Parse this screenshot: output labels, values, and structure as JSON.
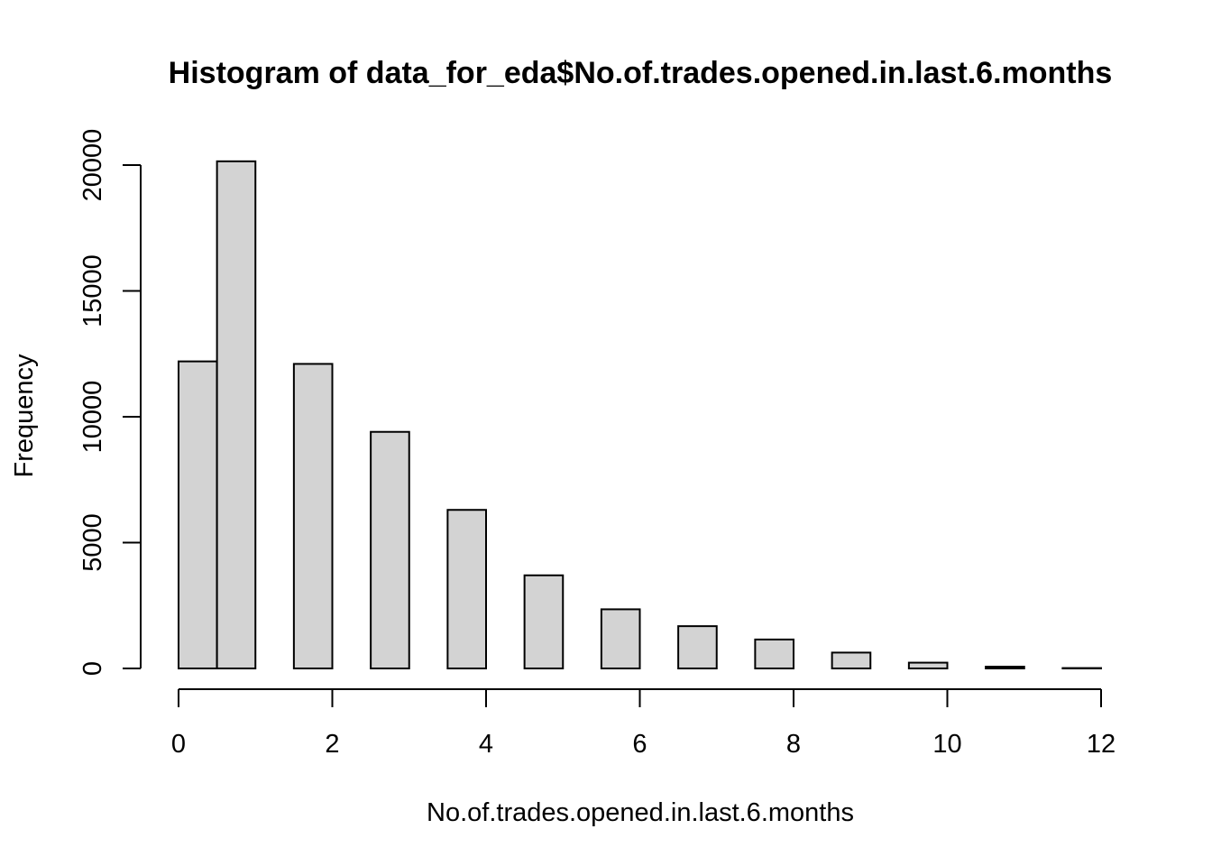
{
  "chart_data": {
    "type": "bar",
    "title": "Histogram of data_for_eda$No.of.trades.opened.in.last.6.months",
    "xlabel": "No.of.trades.opened.in.last.6.months",
    "ylabel": "Frequency",
    "xlim": [
      0,
      12
    ],
    "ylim": [
      0,
      20000
    ],
    "x_ticks": [
      0,
      2,
      4,
      6,
      8,
      10,
      12
    ],
    "y_ticks": [
      0,
      5000,
      10000,
      15000,
      20000
    ],
    "grid": false,
    "bar_color": "#d3d3d3",
    "bar_border_color": "#000000",
    "bins": [
      {
        "start": 0.0,
        "end": 0.5,
        "count": 12200
      },
      {
        "start": 0.5,
        "end": 1.0,
        "count": 20150
      },
      {
        "start": 1.0,
        "end": 1.5,
        "count": 0
      },
      {
        "start": 1.5,
        "end": 2.0,
        "count": 12100
      },
      {
        "start": 2.0,
        "end": 2.5,
        "count": 0
      },
      {
        "start": 2.5,
        "end": 3.0,
        "count": 9400
      },
      {
        "start": 3.0,
        "end": 3.5,
        "count": 0
      },
      {
        "start": 3.5,
        "end": 4.0,
        "count": 6300
      },
      {
        "start": 4.0,
        "end": 4.5,
        "count": 0
      },
      {
        "start": 4.5,
        "end": 5.0,
        "count": 3700
      },
      {
        "start": 5.0,
        "end": 5.5,
        "count": 0
      },
      {
        "start": 5.5,
        "end": 6.0,
        "count": 2350
      },
      {
        "start": 6.0,
        "end": 6.5,
        "count": 0
      },
      {
        "start": 6.5,
        "end": 7.0,
        "count": 1680
      },
      {
        "start": 7.0,
        "end": 7.5,
        "count": 0
      },
      {
        "start": 7.5,
        "end": 8.0,
        "count": 1150
      },
      {
        "start": 8.0,
        "end": 8.5,
        "count": 0
      },
      {
        "start": 8.5,
        "end": 9.0,
        "count": 630
      },
      {
        "start": 9.0,
        "end": 9.5,
        "count": 0
      },
      {
        "start": 9.5,
        "end": 10.0,
        "count": 230
      },
      {
        "start": 10.0,
        "end": 10.5,
        "count": 0
      },
      {
        "start": 10.5,
        "end": 11.0,
        "count": 70
      },
      {
        "start": 11.0,
        "end": 11.5,
        "count": 0
      },
      {
        "start": 11.5,
        "end": 12.0,
        "count": 15
      }
    ]
  }
}
